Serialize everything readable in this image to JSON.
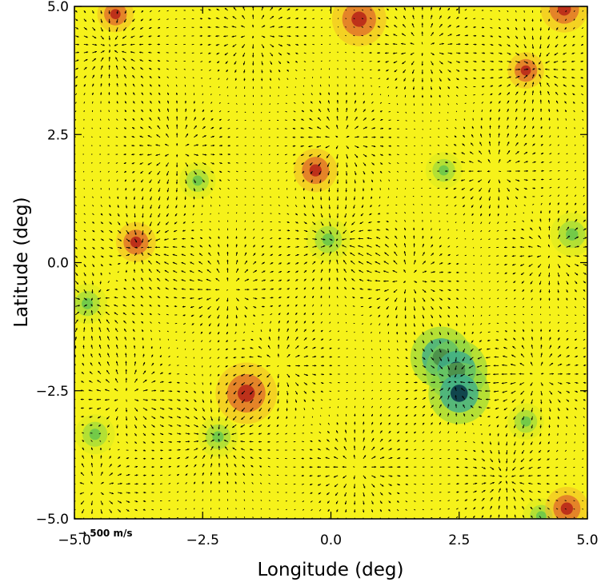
{
  "chart_data": {
    "type": "vector_field",
    "xlabel": "Longitude (deg)",
    "ylabel": "Latitude (deg)",
    "xlim": [
      -5.0,
      5.0
    ],
    "ylim": [
      -5.0,
      5.0
    ],
    "x_ticks": [
      -5.0,
      -2.5,
      0.0,
      2.5,
      5.0
    ],
    "y_ticks": [
      -5.0,
      -2.5,
      0.0,
      2.5,
      5.0
    ],
    "x_tick_labels": [
      "−5.0",
      "−2.5",
      "0.0",
      "2.5",
      "5.0"
    ],
    "y_tick_labels": [
      "−5.0",
      "−2.5",
      "0.0",
      "2.5",
      "5.0"
    ],
    "background_color": "#f6f21a",
    "arrow_color": "#000000",
    "scale_arrow_label": "→ 500 m/s",
    "features": [
      {
        "kind": "green-blue",
        "lon": 2.15,
        "lat": -1.85,
        "value": -1.0
      },
      {
        "kind": "green-blue",
        "lon": 2.45,
        "lat": -2.1,
        "value": -1.0
      },
      {
        "kind": "green-blue",
        "lon": 2.5,
        "lat": -2.55,
        "value": -1.0
      },
      {
        "kind": "green",
        "lon": -0.05,
        "lat": 0.45,
        "value": -0.5
      },
      {
        "kind": "green",
        "lon": 4.7,
        "lat": 0.55,
        "value": -0.5
      },
      {
        "kind": "green",
        "lon": -4.75,
        "lat": -0.8,
        "value": -0.4
      },
      {
        "kind": "green",
        "lon": -2.2,
        "lat": -3.4,
        "value": -0.4
      },
      {
        "kind": "green",
        "lon": -4.6,
        "lat": -3.35,
        "value": -0.4
      },
      {
        "kind": "green",
        "lon": 3.8,
        "lat": -3.1,
        "value": -0.3
      },
      {
        "kind": "green",
        "lon": 4.1,
        "lat": -4.95,
        "value": -0.3
      },
      {
        "kind": "green",
        "lon": 2.2,
        "lat": 1.8,
        "value": -0.3
      },
      {
        "kind": "green",
        "lon": -2.6,
        "lat": 1.6,
        "value": -0.3
      },
      {
        "kind": "red",
        "lon": -1.65,
        "lat": -2.55,
        "value": 1.0
      },
      {
        "kind": "red",
        "lon": 0.55,
        "lat": 4.75,
        "value": 0.8
      },
      {
        "kind": "red",
        "lon": 4.55,
        "lat": 4.95,
        "value": 0.6
      },
      {
        "kind": "red",
        "lon": -0.3,
        "lat": 1.8,
        "value": 0.5
      },
      {
        "kind": "red",
        "lon": -3.8,
        "lat": 0.4,
        "value": 0.4
      },
      {
        "kind": "red",
        "lon": 4.6,
        "lat": -4.8,
        "value": 0.5
      },
      {
        "kind": "red",
        "lon": -4.2,
        "lat": 4.85,
        "value": 0.3
      },
      {
        "kind": "red",
        "lon": 3.8,
        "lat": 3.75,
        "value": 0.3
      }
    ],
    "flow_centers": [
      {
        "lon": -4.3,
        "lat": 4.2,
        "type": "converge"
      },
      {
        "lon": -1.5,
        "lat": 4.5,
        "type": "diverge"
      },
      {
        "lon": 1.8,
        "lat": 4.2,
        "type": "diverge"
      },
      {
        "lon": 4.0,
        "lat": 3.8,
        "type": "converge"
      },
      {
        "lon": -3.0,
        "lat": 2.2,
        "type": "diverge"
      },
      {
        "lon": 0.2,
        "lat": 2.4,
        "type": "diverge"
      },
      {
        "lon": 3.2,
        "lat": 1.8,
        "type": "diverge"
      },
      {
        "lon": -3.7,
        "lat": 0.3,
        "type": "converge"
      },
      {
        "lon": -2.0,
        "lat": -0.5,
        "type": "diverge"
      },
      {
        "lon": 0.1,
        "lat": 0.4,
        "type": "converge"
      },
      {
        "lon": 1.5,
        "lat": -0.3,
        "type": "diverge"
      },
      {
        "lon": 4.3,
        "lat": 0.2,
        "type": "diverge"
      },
      {
        "lon": -4.7,
        "lat": -0.8,
        "type": "converge"
      },
      {
        "lon": -4.0,
        "lat": -2.6,
        "type": "diverge"
      },
      {
        "lon": -1.0,
        "lat": -2.0,
        "type": "diverge"
      },
      {
        "lon": 2.4,
        "lat": -2.3,
        "type": "converge"
      },
      {
        "lon": 4.0,
        "lat": -2.2,
        "type": "diverge"
      },
      {
        "lon": -2.2,
        "lat": -3.4,
        "type": "converge"
      },
      {
        "lon": 0.5,
        "lat": -4.0,
        "type": "diverge"
      },
      {
        "lon": 3.4,
        "lat": -4.2,
        "type": "converge"
      },
      {
        "lon": -4.6,
        "lat": -4.4,
        "type": "diverge"
      }
    ]
  }
}
